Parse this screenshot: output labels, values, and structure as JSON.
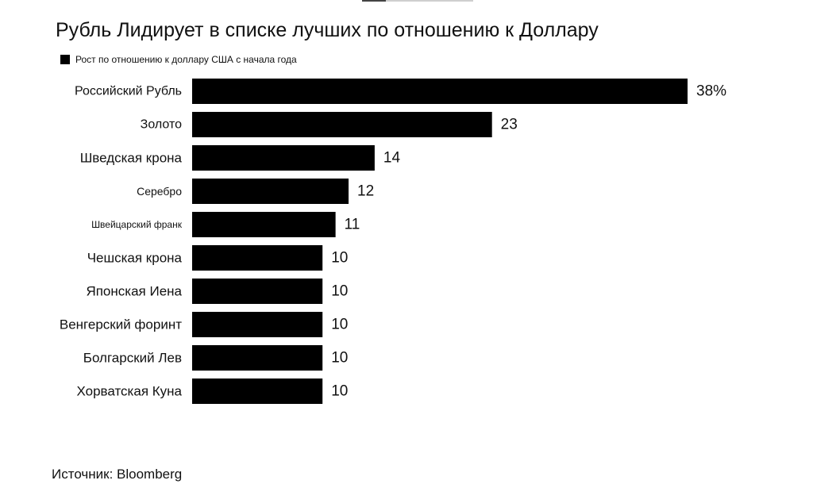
{
  "page": {
    "title": "Рубль Лидирует в списке лучших по отношению к Доллару",
    "source": "Источник: Bloomberg"
  },
  "colors": {
    "bar": "#000000",
    "text": "#111111",
    "background": "#ffffff"
  },
  "chart_data": {
    "type": "bar",
    "orientation": "horizontal",
    "title": "Рубль Лидирует в списке лучших по отношению к Доллару",
    "xlabel": "",
    "ylabel": "",
    "legend": {
      "placement": "top-left",
      "entries": [
        "Рост по отношению к доллару США с начала года"
      ]
    },
    "categories": [
      "Российский Рубль",
      "Золото",
      "Шведская крона",
      "Серебро",
      "Швейцарский франк",
      "Чешская крона",
      "Японская Иена",
      "Венгерский форинт",
      "Болгарский Лев",
      "Хорватская Куна"
    ],
    "values": [
      38,
      23,
      14,
      12,
      11,
      10,
      10,
      10,
      10,
      10
    ],
    "data_labels": [
      "38%",
      "23",
      "14",
      "12",
      "11",
      "10",
      "10",
      "10",
      "10",
      "10"
    ],
    "xlim": [
      0,
      38
    ],
    "grid": false
  }
}
